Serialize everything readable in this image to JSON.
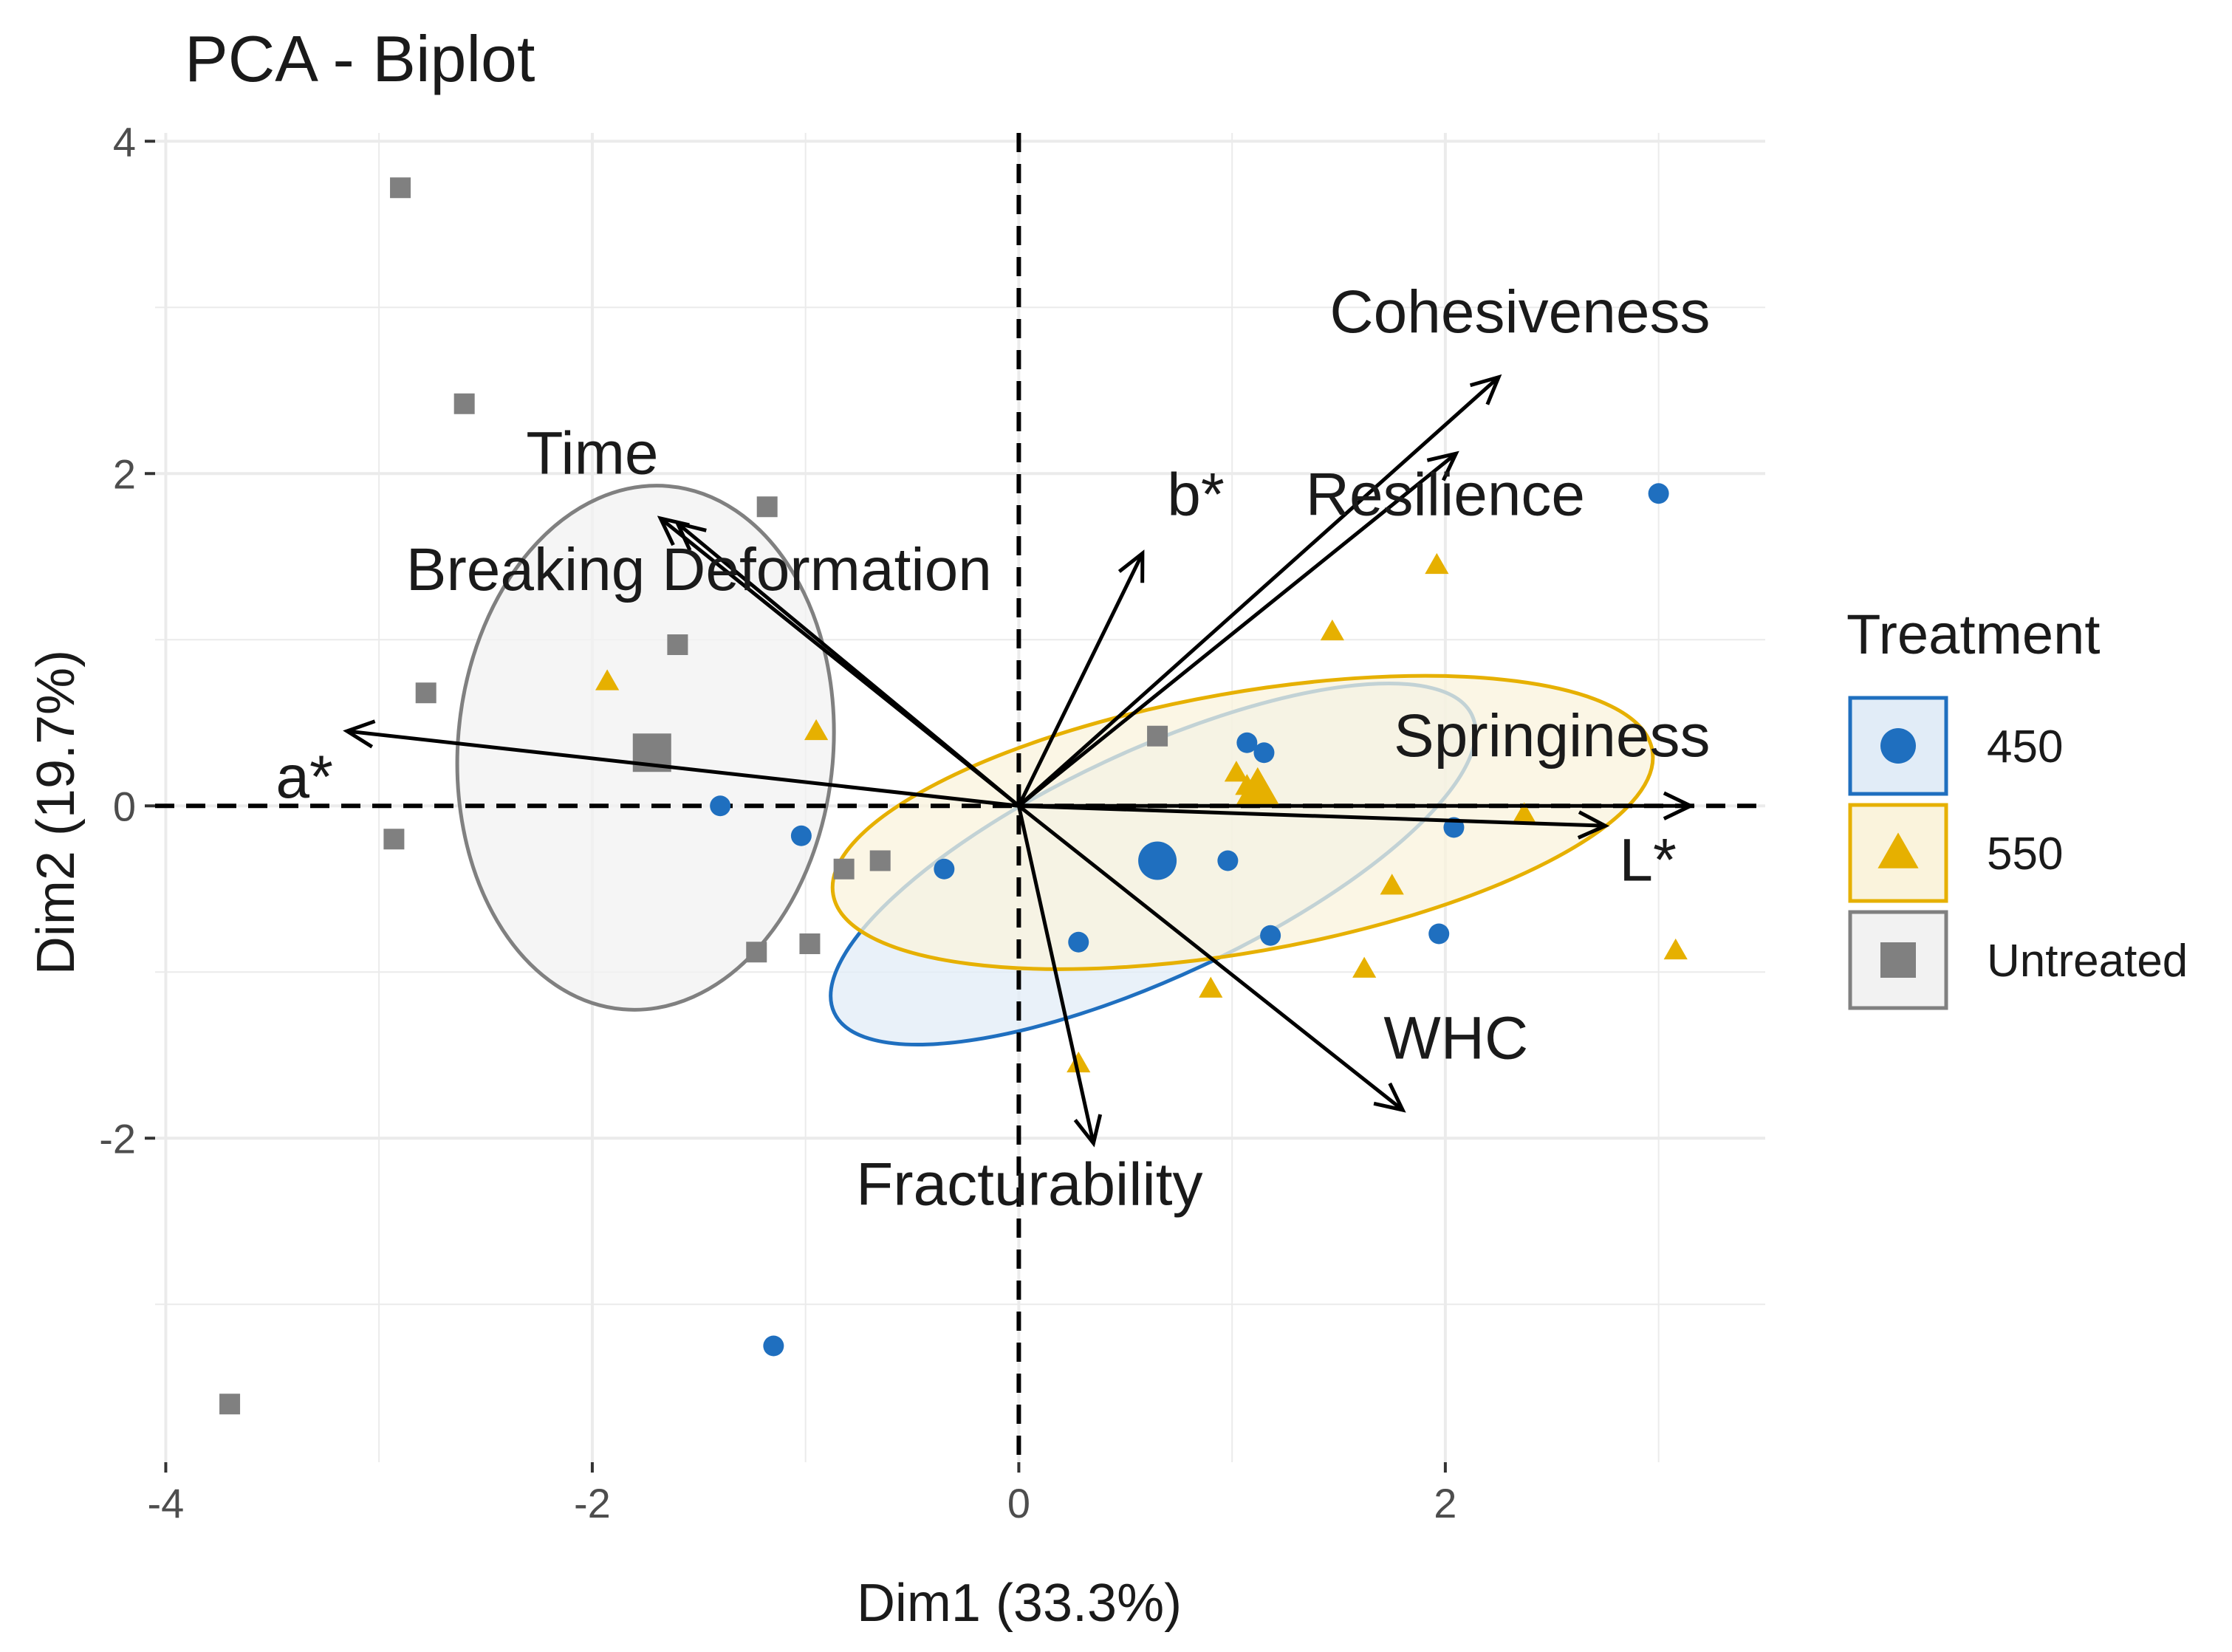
{
  "chart_data": {
    "type": "scatter",
    "title": "PCA - Biplot",
    "xlabel": "Dim1 (33.3%)",
    "ylabel": "Dim2 (19.7%)",
    "xlim": [
      -4.05,
      3.5
    ],
    "ylim": [
      -3.95,
      4.05
    ],
    "xticks": [
      {
        "v": -4,
        "label": "-4"
      },
      {
        "v": -2,
        "label": "-2"
      },
      {
        "v": 0,
        "label": "0"
      },
      {
        "v": 2,
        "label": "2"
      }
    ],
    "yticks": [
      {
        "v": -2,
        "label": "-2"
      },
      {
        "v": 0,
        "label": "0"
      },
      {
        "v": 2,
        "label": "2"
      },
      {
        "v": 4,
        "label": "4"
      }
    ],
    "grid": true,
    "legend": {
      "title": "Treatment",
      "position": "right",
      "entries": [
        {
          "label": "450",
          "shape": "circle",
          "color": "#1f6fbf"
        },
        {
          "label": "550",
          "shape": "triangle",
          "color": "#e6b000"
        },
        {
          "label": "Untreated",
          "shape": "square",
          "color": "#808080"
        }
      ]
    },
    "groups": [
      {
        "name": "450",
        "shape": "circle",
        "color": "#1f6fbf",
        "fill": "#e1ecf7",
        "ellipse": {
          "cx": 0.63,
          "cy": -0.35,
          "rx": 1.65,
          "ry": 0.68,
          "angle": 25
        },
        "centroid": [
          0.65,
          -0.33
        ],
        "points": [
          [
            -1.4,
            0.0
          ],
          [
            -1.02,
            -0.18
          ],
          [
            -0.35,
            -0.38
          ],
          [
            0.28,
            -0.82
          ],
          [
            0.98,
            -0.33
          ],
          [
            1.07,
            0.38
          ],
          [
            1.15,
            0.32
          ],
          [
            1.18,
            -0.78
          ],
          [
            1.97,
            -0.77
          ],
          [
            2.04,
            -0.13
          ],
          [
            3.0,
            1.88
          ],
          [
            -1.15,
            -3.25
          ]
        ]
      },
      {
        "name": "550",
        "shape": "triangle",
        "color": "#e6b000",
        "fill": "#faf3dc",
        "ellipse": {
          "cx": 1.05,
          "cy": -0.1,
          "rx": 1.95,
          "ry": 0.78,
          "angle": 10
        },
        "centroid": [
          1.12,
          0.1
        ],
        "points": [
          [
            -1.93,
            0.75
          ],
          [
            -0.95,
            0.45
          ],
          [
            0.28,
            -1.55
          ],
          [
            0.9,
            -1.1
          ],
          [
            1.02,
            0.2
          ],
          [
            1.07,
            0.12
          ],
          [
            1.15,
            0.05
          ],
          [
            1.47,
            1.05
          ],
          [
            1.62,
            -0.98
          ],
          [
            1.75,
            -0.48
          ],
          [
            1.96,
            1.45
          ],
          [
            2.37,
            -0.05
          ],
          [
            3.08,
            -0.87
          ]
        ]
      },
      {
        "name": "Untreated",
        "shape": "square",
        "color": "#808080",
        "fill": "#f2f2f2",
        "ellipse": {
          "cx": -1.75,
          "cy": 0.35,
          "rx": 0.88,
          "ry": 1.58,
          "angle": -5
        },
        "centroid": [
          -1.72,
          0.32
        ],
        "points": [
          [
            -2.9,
            3.72
          ],
          [
            -2.6,
            2.42
          ],
          [
            -1.18,
            1.8
          ],
          [
            -1.6,
            0.97
          ],
          [
            -2.78,
            0.68
          ],
          [
            -2.93,
            -0.2
          ],
          [
            -0.82,
            -0.38
          ],
          [
            -0.65,
            -0.33
          ],
          [
            -0.98,
            -0.83
          ],
          [
            -1.23,
            -0.88
          ],
          [
            0.65,
            0.42
          ],
          [
            -3.7,
            -3.6
          ]
        ]
      }
    ],
    "variables": [
      {
        "name": "Time",
        "x": -1.68,
        "y": 1.73,
        "lx": -2.0,
        "ly": 2.0
      },
      {
        "name": "Breaking Deformation",
        "x": -1.6,
        "y": 1.7,
        "lx": -1.5,
        "ly": 1.3
      },
      {
        "name": "a*",
        "x": -3.15,
        "y": 0.45,
        "lx": -3.35,
        "ly": 0.05
      },
      {
        "name": "b*",
        "x": 0.58,
        "y": 1.52,
        "lx": 0.83,
        "ly": 1.75
      },
      {
        "name": "Cohesiveness",
        "x": 2.25,
        "y": 2.58,
        "lx": 2.35,
        "ly": 2.85
      },
      {
        "name": "Resilience",
        "x": 2.05,
        "y": 2.12,
        "lx": 2.0,
        "ly": 1.75
      },
      {
        "name": "Springiness",
        "x": 3.15,
        "y": 0.0,
        "lx": 2.5,
        "ly": 0.3
      },
      {
        "name": "L*",
        "x": 2.75,
        "y": -0.12,
        "lx": 2.95,
        "ly": -0.45
      },
      {
        "name": "WHC",
        "x": 1.8,
        "y": -1.83,
        "lx": 2.05,
        "ly": -1.52
      },
      {
        "name": "Fracturability",
        "x": 0.35,
        "y": -2.03,
        "lx": 0.05,
        "ly": -2.4
      }
    ]
  }
}
